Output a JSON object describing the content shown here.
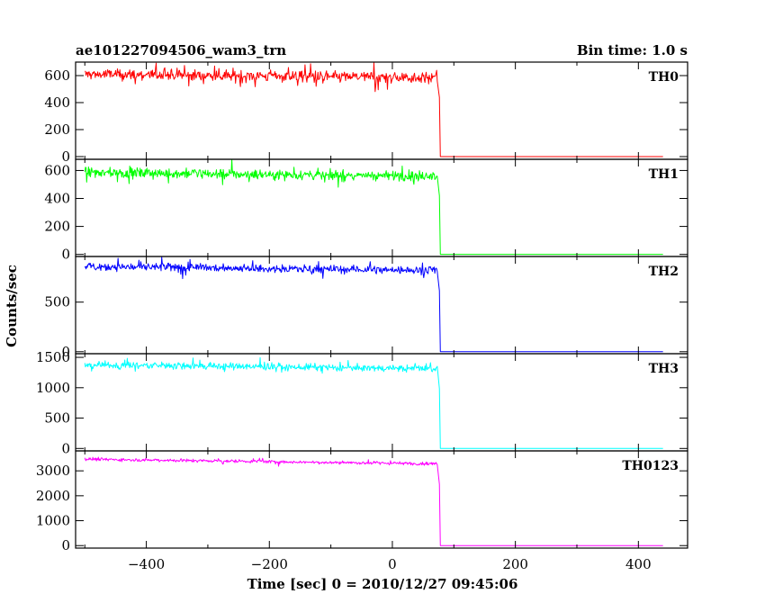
{
  "header": {
    "title": "ae101227094506_wam3_trn",
    "bin_time": "Bin time: 1.0 s"
  },
  "chart_data": {
    "type": "line",
    "title": "ae101227094506_wam3_trn",
    "xlabel": "Time [sec] 0 = 2010/12/27 09:45:06",
    "ylabel": "Counts/sec",
    "xlim": [
      -515,
      480
    ],
    "x_ticks": [
      -400,
      -200,
      0,
      200,
      400
    ],
    "x_tick_labels": [
      "−400",
      "−200",
      "0",
      "200",
      "400"
    ],
    "x_start": -500,
    "x_end": 440,
    "drop_time": 78,
    "series": [
      {
        "name": "TH0",
        "color": "#ff0000",
        "level_start": 610,
        "level_end": 585,
        "noise": 30,
        "ylim": [
          -20,
          700
        ],
        "y_ticks": [
          0,
          200,
          400,
          600
        ]
      },
      {
        "name": "TH1",
        "color": "#00ff00",
        "level_start": 585,
        "level_end": 560,
        "noise": 25,
        "ylim": [
          -15,
          680
        ],
        "y_ticks": [
          0,
          200,
          400,
          600
        ]
      },
      {
        "name": "TH2",
        "color": "#0000ff",
        "level_start": 860,
        "level_end": 820,
        "noise": 28,
        "ylim": [
          -20,
          960
        ],
        "y_ticks": [
          0,
          500
        ]
      },
      {
        "name": "TH3",
        "color": "#00ffff",
        "level_start": 1380,
        "level_end": 1310,
        "noise": 40,
        "ylim": [
          -40,
          1560
        ],
        "y_ticks": [
          0,
          500,
          1000,
          1500
        ]
      },
      {
        "name": "TH0123",
        "color": "#ff00ff",
        "level_start": 3470,
        "level_end": 3280,
        "noise": 45,
        "ylim": [
          -100,
          3800
        ],
        "y_ticks": [
          0,
          1000,
          2000,
          3000
        ]
      }
    ],
    "grid": false,
    "legend": "panel labels top-right"
  }
}
